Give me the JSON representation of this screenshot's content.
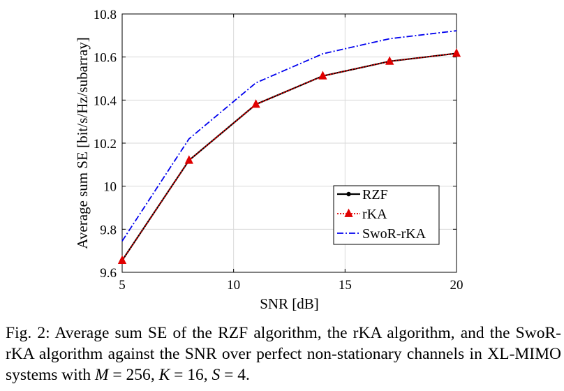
{
  "chart_data": {
    "type": "line",
    "xlabel": "SNR [dB]",
    "ylabel": "Average sum SE [bit/s/Hz/subarray]",
    "xlim": [
      5,
      20
    ],
    "ylim": [
      9.6,
      10.8
    ],
    "xticks": [
      "5",
      "10",
      "15",
      "20"
    ],
    "yticks": [
      "9.6",
      "9.8",
      "10",
      "10.2",
      "10.4",
      "10.6",
      "10.8"
    ],
    "grid": true,
    "legend_position": "lower-right",
    "x": [
      5,
      8,
      11,
      14,
      17,
      20
    ],
    "series": [
      {
        "name": "RZF",
        "values": [
          9.655,
          10.12,
          10.38,
          10.512,
          10.58,
          10.617
        ],
        "color": "#000000",
        "style": "solid",
        "marker": "dot"
      },
      {
        "name": "rKA",
        "values": [
          9.655,
          10.12,
          10.38,
          10.512,
          10.58,
          10.617
        ],
        "color": "#e00000",
        "style": "dotted",
        "marker": "triangle"
      },
      {
        "name": "SwoR-rKA",
        "values": [
          9.745,
          10.22,
          10.48,
          10.615,
          10.685,
          10.722
        ],
        "color": "#0000ee",
        "style": "dashdot",
        "marker": "none"
      }
    ]
  },
  "caption": {
    "label": "Fig. 2:",
    "text_a": "Average sum SE of the RZF algorithm, the rKA algorithm, and the SwoR-rKA algorithm against the SNR over perfect non-stationary channels in XL-MIMO systems with",
    "m_sym": "M",
    "m_eq": " = 256",
    "sep1": ", ",
    "k_sym": "K",
    "k_eq": " = 16",
    "sep2": ", ",
    "s_sym": "S",
    "s_eq": " = 4",
    "end": "."
  }
}
